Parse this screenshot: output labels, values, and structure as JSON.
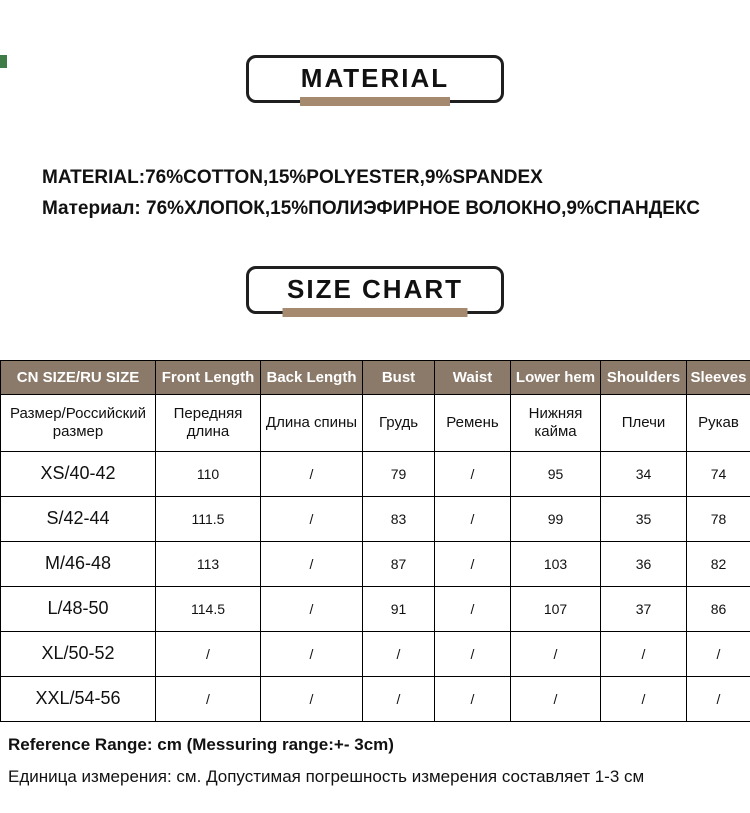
{
  "material_section": {
    "badge_label": "MATERIAL",
    "line_en": "MATERIAL:76%COTTON,15%POLYESTER,9%SPANDEX",
    "line_ru": "Материал: 76%ХЛОПОК,15%ПОЛИЭФИРНОЕ ВОЛОКНО,9%СПАНДЕКС"
  },
  "size_section": {
    "badge_label": "SIZE CHART"
  },
  "table": {
    "header_en": [
      "CN SIZE/RU SIZE",
      "Front Length",
      "Back Length",
      "Bust",
      "Waist",
      "Lower hem",
      "Shoulders",
      "Sleeves"
    ],
    "header_ru": [
      "Размер/Российский размер",
      "Передняя длина",
      "Длина спины",
      "Грудь",
      "Ремень",
      "Нижняя кайма",
      "Плечи",
      "Рукав"
    ],
    "rows": [
      [
        "XS/40-42",
        "110",
        "/",
        "79",
        "/",
        "95",
        "34",
        "74"
      ],
      [
        "S/42-44",
        "111.5",
        "/",
        "83",
        "/",
        "99",
        "35",
        "78"
      ],
      [
        "M/46-48",
        "113",
        "/",
        "87",
        "/",
        "103",
        "36",
        "82"
      ],
      [
        "L/48-50",
        "114.5",
        "/",
        "91",
        "/",
        "107",
        "37",
        "86"
      ],
      [
        "XL/50-52",
        "/",
        "/",
        "/",
        "/",
        "/",
        "/",
        "/"
      ],
      [
        "XXL/54-56",
        "/",
        "/",
        "/",
        "/",
        "/",
        "/",
        "/"
      ]
    ]
  },
  "footer": {
    "line_en": "Reference Range: cm (Messuring range:+- 3cm)",
    "line_ru": "Единица измерения: см. Допустимая погрешность измерения составляет 1-3 см"
  },
  "colors": {
    "accent_brown": "#a58a6f",
    "table_header_bg": "#8b7a6a",
    "border": "#000000",
    "corner_mark_green": "#3d7c46"
  }
}
